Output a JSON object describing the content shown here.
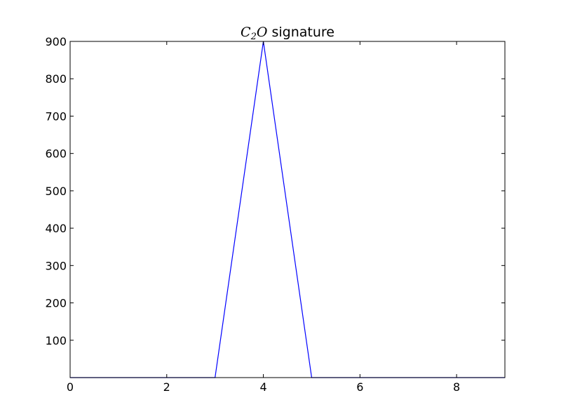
{
  "chart_data": {
    "type": "line",
    "title": {
      "math_main": "C",
      "math_sub": "2",
      "math_tail": "O",
      "text": " signature"
    },
    "xlabel": "",
    "ylabel": "",
    "xlim": [
      0,
      9
    ],
    "ylim": [
      0,
      900
    ],
    "x_ticks": [
      0,
      2,
      4,
      6,
      8
    ],
    "x_tick_labels": [
      "0",
      "2",
      "4",
      "6",
      "8"
    ],
    "y_ticks": [
      100,
      200,
      300,
      400,
      500,
      600,
      700,
      800,
      900
    ],
    "y_tick_labels": [
      "100",
      "200",
      "300",
      "400",
      "500",
      "600",
      "700",
      "800",
      "900"
    ],
    "grid": false,
    "series": [
      {
        "color": "#0000ff",
        "x": [
          0,
          1,
          2,
          3,
          4,
          5,
          6,
          7,
          8,
          9
        ],
        "y": [
          0,
          0,
          0,
          0,
          900,
          0,
          0,
          0,
          0,
          0
        ]
      }
    ]
  }
}
